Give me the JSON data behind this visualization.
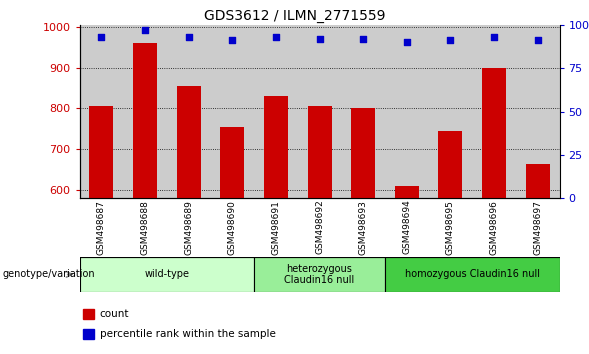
{
  "title": "GDS3612 / ILMN_2771559",
  "samples": [
    "GSM498687",
    "GSM498688",
    "GSM498689",
    "GSM498690",
    "GSM498691",
    "GSM498692",
    "GSM498693",
    "GSM498694",
    "GSM498695",
    "GSM498696",
    "GSM498697"
  ],
  "bar_values": [
    805,
    960,
    855,
    755,
    830,
    805,
    800,
    610,
    745,
    900,
    665
  ],
  "percentile_values": [
    93,
    97,
    93,
    91,
    93,
    92,
    92,
    90,
    91,
    93,
    91
  ],
  "bar_color": "#cc0000",
  "dot_color": "#0000cc",
  "ylim_left": [
    580,
    1005
  ],
  "ylim_right": [
    0,
    100
  ],
  "yticks_left": [
    600,
    700,
    800,
    900,
    1000
  ],
  "yticks_right": [
    0,
    25,
    50,
    75,
    100
  ],
  "ytick_labels_right": [
    "0",
    "25",
    "50",
    "75",
    "100%"
  ],
  "bar_bottom": 580,
  "groups": [
    {
      "label": "wild-type",
      "start": 0,
      "end": 3,
      "color": "#ccffcc"
    },
    {
      "label": "heterozygous\nClaudin16 null",
      "start": 4,
      "end": 6,
      "color": "#99ee99"
    },
    {
      "label": "homozygous Claudin16 null",
      "start": 7,
      "end": 10,
      "color": "#44cc44"
    }
  ],
  "col_bg_color": "#cccccc",
  "plot_bg_color": "#ffffff",
  "genotype_label": "genotype/variation",
  "tick_label_color_left": "#cc0000",
  "tick_label_color_right": "#0000cc",
  "legend_items": [
    {
      "color": "#cc0000",
      "label": "count"
    },
    {
      "color": "#0000cc",
      "label": "percentile rank within the sample"
    }
  ]
}
